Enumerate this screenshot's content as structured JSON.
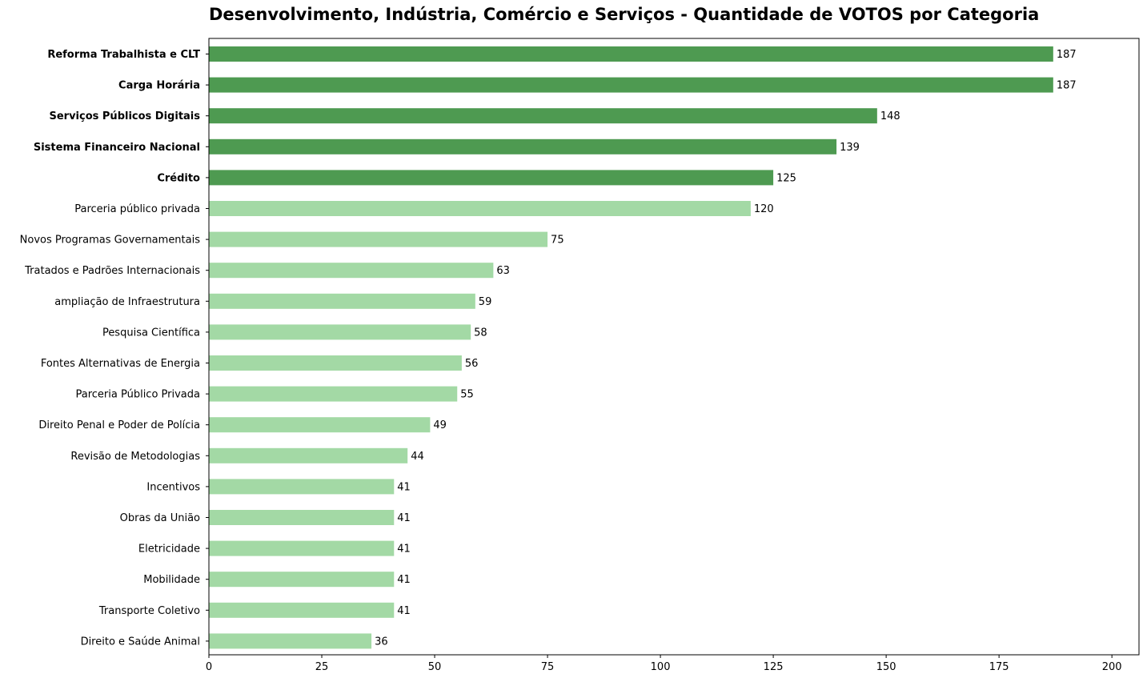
{
  "chart_data": {
    "type": "bar",
    "orientation": "horizontal",
    "title": "Desenvolvimento, Indústria, Comércio e Serviços - Quantidade de VOTOS por Categoria",
    "xlabel": "",
    "ylabel": "",
    "xlim": [
      0,
      206
    ],
    "xticks": [
      0,
      25,
      50,
      75,
      100,
      125,
      150,
      175,
      200
    ],
    "grid": false,
    "legend": "none",
    "highlight_top_n": 5,
    "colors": {
      "highlight": "#4e9a51",
      "default": "#a3d9a5"
    },
    "categories": [
      "Reforma Trabalhista e CLT",
      "Carga Horária",
      "Serviços Públicos Digitais",
      "Sistema Financeiro Nacional",
      "Crédito",
      "Parceria público privada",
      "Novos Programas Governamentais",
      "Tratados e Padrões Internacionais",
      "ampliação de Infraestrutura",
      "Pesquisa Científica",
      "Fontes Alternativas de Energia",
      "Parceria Público Privada",
      "Direito Penal e Poder de Polícia",
      "Revisão de Metodologias",
      "Incentivos",
      "Obras da União",
      "Eletricidade",
      "Mobilidade",
      "Transporte Coletivo",
      "Direito e Saúde Animal"
    ],
    "values": [
      187,
      187,
      148,
      139,
      125,
      120,
      75,
      63,
      59,
      58,
      56,
      55,
      49,
      44,
      41,
      41,
      41,
      41,
      41,
      36
    ]
  }
}
